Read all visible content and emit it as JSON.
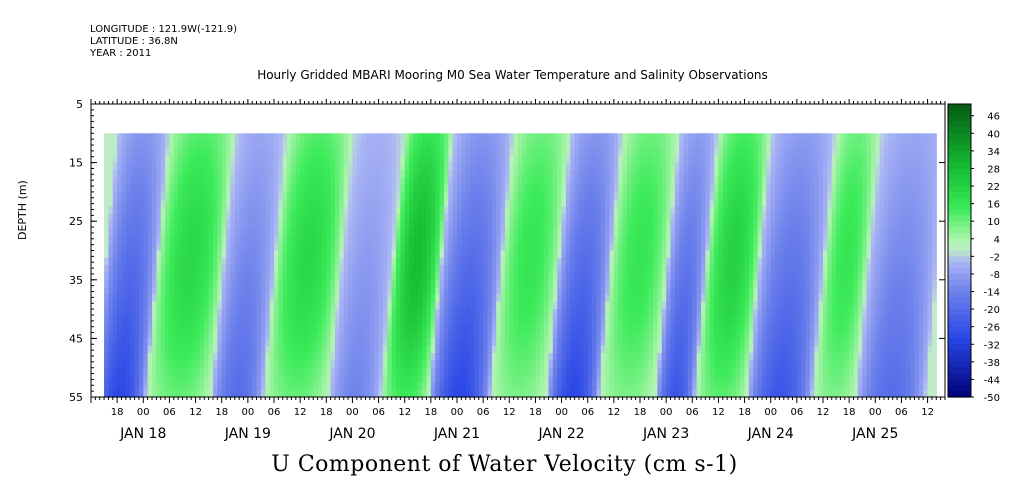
{
  "header": {
    "longitude": "LONGITUDE : 121.9W(-121.9)",
    "latitude": "LATITUDE : 36.8N",
    "year": "YEAR : 2011",
    "title": "Hourly Gridded MBARI Mooring M0 Sea Water Temperature and Salinity Observations"
  },
  "chart_data": {
    "type": "heatmap",
    "title": "U Component of Water Velocity (cm s-1)",
    "ylabel": "DEPTH (m)",
    "y_reversed": true,
    "ylim": [
      5,
      55
    ],
    "y_ticks": [
      "5",
      "15",
      "25",
      "35",
      "45",
      "55"
    ],
    "x_range_hours": [
      "JAN 17 12:00",
      "JAN 25 16:00"
    ],
    "x_hour_ticks": [
      "18",
      "00",
      "06",
      "12",
      "18",
      "00",
      "06",
      "12",
      "18",
      "00",
      "06",
      "12",
      "18",
      "00",
      "06",
      "12",
      "18",
      "00",
      "06",
      "12",
      "18",
      "00",
      "06",
      "12",
      "18",
      "00",
      "06",
      "12",
      "18",
      "00",
      "06",
      "12"
    ],
    "x_day_labels": [
      "JAN 18",
      "JAN 19",
      "JAN 20",
      "JAN 21",
      "JAN 22",
      "JAN 23",
      "JAN 24",
      "JAN 25"
    ],
    "data_start": "JAN 17 15:00",
    "data_depth_range": [
      10,
      55
    ],
    "colorbar": {
      "labels": [
        "46",
        "40",
        "34",
        "28",
        "22",
        "16",
        "10",
        "4",
        "-2",
        "-8",
        "-14",
        "-20",
        "-26",
        "-32",
        "-38",
        "-44",
        "-50"
      ],
      "range": [
        -50,
        50
      ],
      "colors": {
        "strong_neg": "#00007a",
        "neg": "#3a55e0",
        "weak_neg": "#a8b2f2",
        "near_zero": "#b8f0b8",
        "pos": "#3ef05a",
        "strong_pos": "#0a7a1a"
      }
    },
    "velocity_bands": [
      {
        "start": "JAN 17 15:00",
        "end": "JAN 18 03:00",
        "sign": "negative",
        "peak": -30
      },
      {
        "start": "JAN 18 03:00",
        "end": "JAN 18 18:00",
        "sign": "positive",
        "peak": 20
      },
      {
        "start": "JAN 18 18:00",
        "end": "JAN 19 06:00",
        "sign": "negative",
        "peak": -20
      },
      {
        "start": "JAN 19 06:00",
        "end": "JAN 19 21:00",
        "sign": "positive",
        "peak": 20
      },
      {
        "start": "JAN 19 21:00",
        "end": "JAN 20 09:00",
        "sign": "negative",
        "peak": -14
      },
      {
        "start": "JAN 20 09:00",
        "end": "JAN 20 20:00",
        "sign": "positive",
        "peak": 28
      },
      {
        "start": "JAN 20 20:00",
        "end": "JAN 21 10:00",
        "sign": "negative",
        "peak": -30
      },
      {
        "start": "JAN 21 10:00",
        "end": "JAN 21 23:00",
        "sign": "positive",
        "peak": 16
      },
      {
        "start": "JAN 21 23:00",
        "end": "JAN 22 11:00",
        "sign": "negative",
        "peak": -30
      },
      {
        "start": "JAN 22 11:00",
        "end": "JAN 23 00:00",
        "sign": "positive",
        "peak": 16
      },
      {
        "start": "JAN 23 00:00",
        "end": "JAN 23 09:00",
        "sign": "negative",
        "peak": -26
      },
      {
        "start": "JAN 23 09:00",
        "end": "JAN 23 21:00",
        "sign": "positive",
        "peak": 22
      },
      {
        "start": "JAN 23 21:00",
        "end": "JAN 24 12:00",
        "sign": "negative",
        "peak": -26
      },
      {
        "start": "JAN 24 12:00",
        "end": "JAN 24 22:00",
        "sign": "positive",
        "peak": 16
      },
      {
        "start": "JAN 24 22:00",
        "end": "JAN 25 14:00",
        "sign": "negative",
        "peak": -20
      }
    ]
  }
}
